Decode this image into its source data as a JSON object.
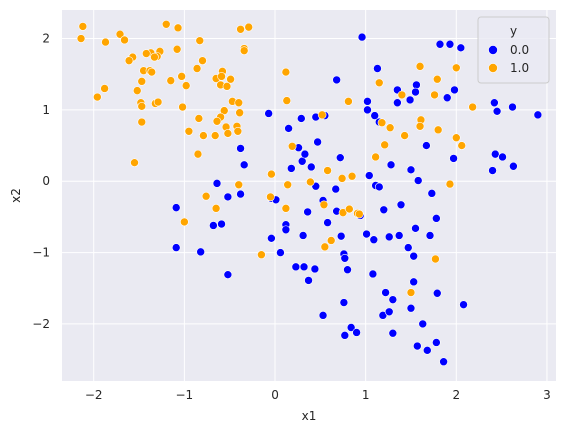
{
  "chart_data": {
    "type": "scatter",
    "title": "",
    "xlabel": "x1",
    "ylabel": "x2",
    "xlim": [
      -2.35,
      3.1
    ],
    "ylim": [
      -2.8,
      2.4
    ],
    "xticks": [
      -2,
      -1,
      0,
      1,
      2,
      3
    ],
    "yticks": [
      -2,
      -1,
      0,
      1,
      2
    ],
    "grid": true,
    "legend": {
      "title": "y",
      "placement": "top-right"
    },
    "colors": {
      "0.0": "#0000ff",
      "1.0": "#ffa500",
      "background": "#eaeaf2",
      "grid": "#ffffff"
    },
    "series": [
      {
        "name": "0.0",
        "points": [
          [
            0.96,
            2.02
          ],
          [
            1.13,
            1.58
          ],
          [
            1.82,
            1.92
          ],
          [
            1.93,
            1.92
          ],
          [
            2.05,
            1.87
          ],
          [
            1.56,
            1.35
          ],
          [
            1.55,
            1.25
          ],
          [
            1.35,
            1.28
          ],
          [
            1.98,
            1.28
          ],
          [
            0.68,
            1.42
          ],
          [
            1.02,
            1.12
          ],
          [
            1.1,
            0.92
          ],
          [
            1.35,
            1.1
          ],
          [
            1.49,
            1.14
          ],
          [
            1.9,
            1.17
          ],
          [
            2.42,
            1.1
          ],
          [
            2.45,
            0.98
          ],
          [
            2.62,
            1.04
          ],
          [
            2.9,
            0.93
          ],
          [
            0.29,
            0.88
          ],
          [
            0.45,
            0.9
          ],
          [
            0.55,
            0.92
          ],
          [
            1.02,
            1.0
          ],
          [
            1.15,
            0.83
          ],
          [
            1.67,
            0.5
          ],
          [
            1.97,
            0.32
          ],
          [
            2.43,
            0.38
          ],
          [
            2.51,
            0.34
          ],
          [
            2.4,
            0.15
          ],
          [
            2.63,
            0.21
          ],
          [
            0.15,
            0.74
          ],
          [
            0.26,
            0.47
          ],
          [
            0.47,
            0.55
          ],
          [
            -0.38,
            0.46
          ],
          [
            -0.07,
            0.95
          ],
          [
            0.3,
            0.28
          ],
          [
            0.33,
            0.38
          ],
          [
            0.18,
            0.18
          ],
          [
            0.4,
            0.2
          ],
          [
            -0.34,
            0.23
          ],
          [
            0.72,
            0.33
          ],
          [
            1.28,
            0.23
          ],
          [
            1.5,
            0.16
          ],
          [
            1.58,
            0.01
          ],
          [
            1.73,
            -0.17
          ],
          [
            1.04,
            0.08
          ],
          [
            1.11,
            -0.06
          ],
          [
            1.15,
            -0.08
          ],
          [
            0.45,
            -0.07
          ],
          [
            0.67,
            -0.11
          ],
          [
            0.53,
            -0.27
          ],
          [
            -0.64,
            -0.03
          ],
          [
            -0.52,
            -0.22
          ],
          [
            -0.04,
            -0.24
          ],
          [
            0.01,
            -0.26
          ],
          [
            -0.38,
            -0.18
          ],
          [
            0.36,
            -0.43
          ],
          [
            0.68,
            -0.42
          ],
          [
            0.94,
            -0.48
          ],
          [
            1.2,
            -0.4
          ],
          [
            1.39,
            -0.33
          ],
          [
            1.78,
            -0.52
          ],
          [
            -1.09,
            -0.37
          ],
          [
            -0.68,
            -0.62
          ],
          [
            -0.59,
            -0.6
          ],
          [
            0.12,
            -0.61
          ],
          [
            0.12,
            -0.68
          ],
          [
            0.31,
            -0.76
          ],
          [
            0.58,
            -0.58
          ],
          [
            0.73,
            -0.77
          ],
          [
            1.01,
            -0.74
          ],
          [
            1.09,
            -0.82
          ],
          [
            1.26,
            -0.78
          ],
          [
            1.37,
            -0.76
          ],
          [
            1.55,
            -0.66
          ],
          [
            1.47,
            -0.93
          ],
          [
            1.71,
            -0.76
          ],
          [
            -0.04,
            -0.8
          ],
          [
            -1.09,
            -0.93
          ],
          [
            -0.82,
            -0.99
          ],
          [
            0.06,
            -1.0
          ],
          [
            0.76,
            -1.02
          ],
          [
            0.77,
            -1.08
          ],
          [
            0.23,
            -1.2
          ],
          [
            0.32,
            -1.2
          ],
          [
            0.44,
            -1.23
          ],
          [
            0.8,
            -1.24
          ],
          [
            0.37,
            -1.39
          ],
          [
            -0.52,
            -1.31
          ],
          [
            1.53,
            -1.05
          ],
          [
            1.08,
            -1.3
          ],
          [
            1.22,
            -1.56
          ],
          [
            1.53,
            -1.41
          ],
          [
            1.79,
            -1.57
          ],
          [
            0.76,
            -1.7
          ],
          [
            1.3,
            -1.66
          ],
          [
            0.53,
            -1.88
          ],
          [
            1.19,
            -1.88
          ],
          [
            1.26,
            -1.83
          ],
          [
            1.5,
            -1.78
          ],
          [
            0.84,
            -2.05
          ],
          [
            0.77,
            -2.16
          ],
          [
            0.9,
            -2.12
          ],
          [
            1.3,
            -2.13
          ],
          [
            1.63,
            -2.0
          ],
          [
            1.57,
            -2.31
          ],
          [
            1.68,
            -2.37
          ],
          [
            1.78,
            -2.26
          ],
          [
            1.86,
            -2.53
          ],
          [
            2.08,
            -1.73
          ]
        ]
      },
      {
        "name": "1.0",
        "points": [
          [
            -2.12,
            2.17
          ],
          [
            -2.14,
            2.0
          ],
          [
            -1.87,
            1.95
          ],
          [
            -1.71,
            2.06
          ],
          [
            -1.66,
            1.98
          ],
          [
            -1.2,
            2.2
          ],
          [
            -1.07,
            2.15
          ],
          [
            -0.38,
            2.13
          ],
          [
            -0.29,
            2.16
          ],
          [
            -0.34,
            1.86
          ],
          [
            -1.37,
            1.8
          ],
          [
            -1.42,
            1.79
          ],
          [
            -1.27,
            1.82
          ],
          [
            -1.08,
            1.85
          ],
          [
            -0.83,
            1.97
          ],
          [
            -1.57,
            1.74
          ],
          [
            -1.61,
            1.69
          ],
          [
            -1.45,
            1.55
          ],
          [
            -1.38,
            1.55
          ],
          [
            -1.3,
            1.75
          ],
          [
            -1.33,
            1.74
          ],
          [
            -0.34,
            1.83
          ],
          [
            -0.58,
            1.54
          ],
          [
            -0.8,
            1.69
          ],
          [
            -1.47,
            1.4
          ],
          [
            -1.36,
            1.53
          ],
          [
            -1.15,
            1.41
          ],
          [
            -1.03,
            1.47
          ],
          [
            -0.98,
            1.34
          ],
          [
            -0.86,
            1.58
          ],
          [
            -0.65,
            1.44
          ],
          [
            -0.59,
            1.47
          ],
          [
            -0.49,
            1.43
          ],
          [
            -0.6,
            1.35
          ],
          [
            -0.53,
            1.33
          ],
          [
            -1.96,
            1.18
          ],
          [
            -1.88,
            1.3
          ],
          [
            -1.52,
            1.27
          ],
          [
            -1.32,
            1.09
          ],
          [
            -1.29,
            1.11
          ],
          [
            -1.48,
            1.1
          ],
          [
            -1.47,
            1.05
          ],
          [
            -1.02,
            1.04
          ],
          [
            -0.84,
            0.88
          ],
          [
            -0.56,
            0.99
          ],
          [
            -0.47,
            1.12
          ],
          [
            -0.4,
            1.1
          ],
          [
            -0.39,
            0.96
          ],
          [
            -0.6,
            0.9
          ],
          [
            -1.47,
            0.83
          ],
          [
            -0.95,
            0.7
          ],
          [
            -0.79,
            0.64
          ],
          [
            -0.64,
            0.84
          ],
          [
            -0.54,
            0.76
          ],
          [
            -0.42,
            0.77
          ],
          [
            -0.41,
            0.7
          ],
          [
            -0.52,
            0.67
          ],
          [
            -0.66,
            0.64
          ],
          [
            -0.85,
            0.38
          ],
          [
            -1.55,
            0.26
          ],
          [
            0.12,
            1.53
          ],
          [
            0.13,
            1.13
          ],
          [
            0.52,
            0.93
          ],
          [
            0.81,
            1.12
          ],
          [
            1.15,
            1.38
          ],
          [
            1.4,
            1.21
          ],
          [
            1.6,
            1.61
          ],
          [
            1.76,
            1.21
          ],
          [
            1.79,
            1.43
          ],
          [
            2.0,
            1.59
          ],
          [
            2.18,
            1.04
          ],
          [
            1.18,
            0.82
          ],
          [
            1.27,
            0.75
          ],
          [
            1.43,
            0.64
          ],
          [
            1.61,
            0.86
          ],
          [
            1.8,
            0.72
          ],
          [
            2.0,
            0.61
          ],
          [
            2.06,
            0.5
          ],
          [
            1.6,
            0.77
          ],
          [
            0.19,
            0.49
          ],
          [
            0.58,
            0.15
          ],
          [
            0.74,
            0.04
          ],
          [
            0.85,
            0.07
          ],
          [
            1.11,
            0.34
          ],
          [
            1.21,
            0.51
          ],
          [
            1.93,
            -0.04
          ],
          [
            -0.04,
            0.1
          ],
          [
            0.14,
            -0.05
          ],
          [
            0.39,
            -0.01
          ],
          [
            0.54,
            -0.33
          ],
          [
            -0.05,
            -0.22
          ],
          [
            0.12,
            -0.38
          ],
          [
            -0.4,
            -0.05
          ],
          [
            -0.65,
            -0.38
          ],
          [
            -0.76,
            -0.21
          ],
          [
            -1.0,
            -0.57
          ],
          [
            0.75,
            -0.44
          ],
          [
            0.82,
            -0.39
          ],
          [
            0.91,
            -0.45
          ],
          [
            0.93,
            -0.46
          ],
          [
            0.62,
            -0.83
          ],
          [
            -0.15,
            -1.03
          ],
          [
            1.77,
            -1.09
          ],
          [
            1.5,
            -1.56
          ],
          [
            0.55,
            -0.92
          ]
        ]
      }
    ]
  }
}
